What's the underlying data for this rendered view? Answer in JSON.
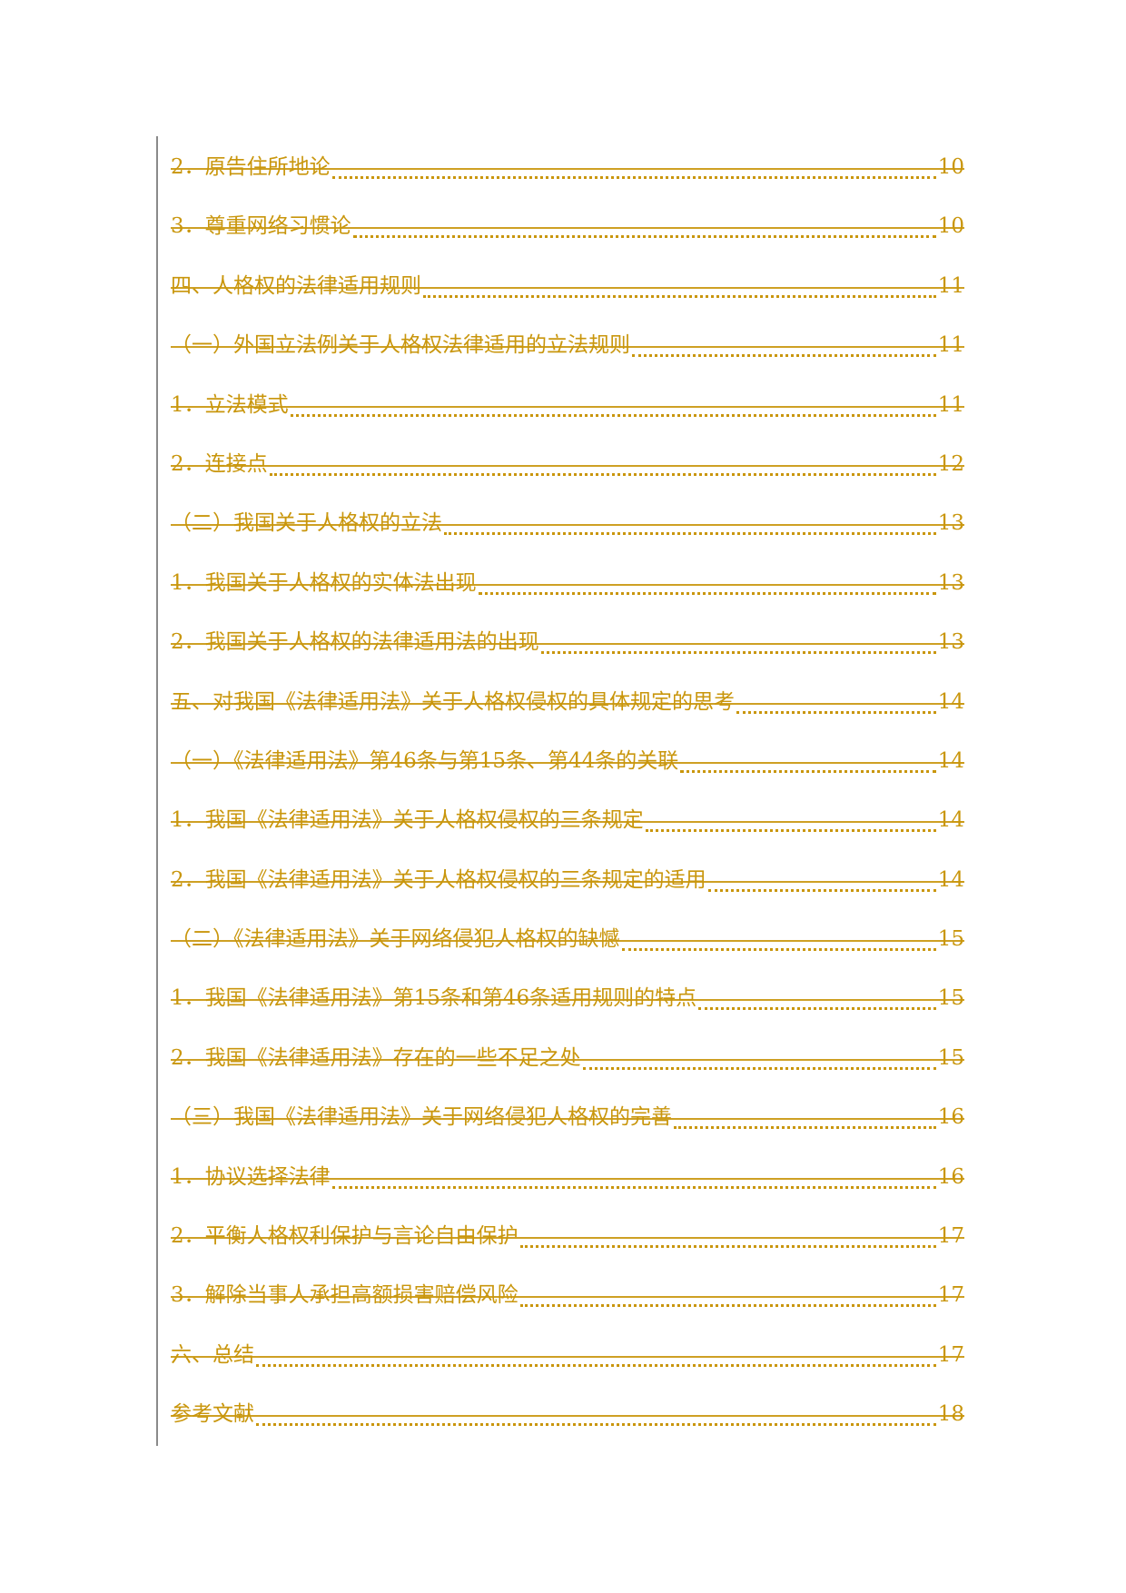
{
  "toc": {
    "color": "#C9960C",
    "style": "strikethrough",
    "entries": [
      {
        "text": "2．原告住所地论",
        "page": "10"
      },
      {
        "text": "3．尊重网络习惯论",
        "page": "10"
      },
      {
        "text": "四、人格权的法律适用规则",
        "page": "11"
      },
      {
        "text": "（一）外国立法例关于人格权法律适用的立法规则",
        "page": "11"
      },
      {
        "text": "1．立法模式",
        "page": "11"
      },
      {
        "text": "2．连接点",
        "page": "12"
      },
      {
        "text": "（二）我国关于人格权的立法",
        "page": "13"
      },
      {
        "text": "1．我国关于人格权的实体法出现",
        "page": "13"
      },
      {
        "text": "2．我国关于人格权的法律适用法的出现",
        "page": "13"
      },
      {
        "text": "五、对我国《法律适用法》关于人格权侵权的具体规定的思考",
        "page": "14"
      },
      {
        "text": "（一）《法律适用法》第46条与第15条、第44条的关联",
        "page": "14"
      },
      {
        "text": "1．我国《法律适用法》关于人格权侵权的三条规定",
        "page": "14"
      },
      {
        "text": "2．我国《法律适用法》关于人格权侵权的三条规定的适用",
        "page": "14"
      },
      {
        "text": "（二）《法律适用法》关于网络侵犯人格权的缺憾",
        "page": "15"
      },
      {
        "text": "1．我国《法律适用法》第15条和第46条适用规则的特点",
        "page": "15"
      },
      {
        "text": "2．我国《法律适用法》存在的一些不足之处",
        "page": "15"
      },
      {
        "text": "（三）我国《法律适用法》关于网络侵犯人格权的完善",
        "page": "16"
      },
      {
        "text": "1．协议选择法律",
        "page": "16"
      },
      {
        "text": "2．平衡人格权利保护与言论自由保护",
        "page": "17"
      },
      {
        "text": "3．解除当事人承担高额损害赔偿风险",
        "page": "17"
      },
      {
        "text": "六、总结",
        "page": "17"
      },
      {
        "text": "参考文献",
        "page": "18"
      }
    ]
  }
}
